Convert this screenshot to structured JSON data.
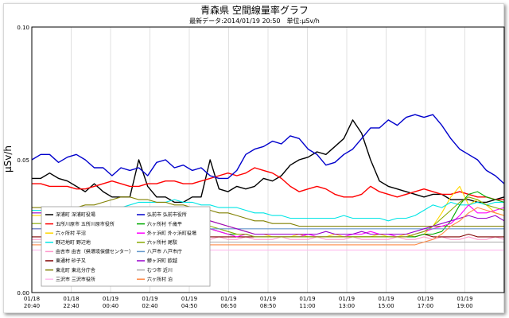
{
  "chart_data": {
    "type": "line",
    "title": "青森県 空間線量率グラフ",
    "subtitle": "最新データ:2014/01/19 20:50　単位:μSv/h",
    "ylabel": "μSv/h",
    "xlabel": "",
    "ylim": [
      0,
      0.1
    ],
    "y_ticks": [
      "0.00",
      "0.05",
      "0.10"
    ],
    "x_ticks": [
      {
        "date": "01/18",
        "time": "20:40"
      },
      {
        "date": "01/18",
        "time": "22:40"
      },
      {
        "date": "01/19",
        "time": "00:40"
      },
      {
        "date": "01/19",
        "time": "02:40"
      },
      {
        "date": "01/19",
        "time": "04:50"
      },
      {
        "date": "01/19",
        "time": "06:50"
      },
      {
        "date": "01/19",
        "time": "08:50"
      },
      {
        "date": "01/19",
        "time": "11:00"
      },
      {
        "date": "01/19",
        "time": "13:00"
      },
      {
        "date": "01/19",
        "time": "15:00"
      },
      {
        "date": "01/19",
        "time": "17:00"
      },
      {
        "date": "01/19",
        "time": "19:00"
      }
    ],
    "grid": "vertical",
    "series": [
      {
        "name": "深浦町 深浦町役場",
        "color": "#000000",
        "values": [
          0.043,
          0.043,
          0.045,
          0.043,
          0.042,
          0.04,
          0.038,
          0.041,
          0.038,
          0.036,
          0.036,
          0.036,
          0.05,
          0.04,
          0.036,
          0.036,
          0.034,
          0.034,
          0.036,
          0.036,
          0.05,
          0.039,
          0.038,
          0.04,
          0.039,
          0.04,
          0.043,
          0.042,
          0.044,
          0.048,
          0.05,
          0.051,
          0.053,
          0.052,
          0.055,
          0.058,
          0.065,
          0.06,
          0.05,
          0.042,
          0.04,
          0.039,
          0.038,
          0.037,
          0.036,
          0.037,
          0.037,
          0.035,
          0.035,
          0.035,
          0.034,
          0.034,
          0.035,
          0.036
        ]
      },
      {
        "name": "五所川原市 五所川原市役所",
        "color": "#ff0000",
        "values": [
          0.041,
          0.041,
          0.04,
          0.04,
          0.04,
          0.039,
          0.039,
          0.04,
          0.041,
          0.042,
          0.041,
          0.04,
          0.04,
          0.041,
          0.041,
          0.042,
          0.042,
          0.041,
          0.041,
          0.042,
          0.043,
          0.044,
          0.045,
          0.044,
          0.045,
          0.047,
          0.046,
          0.045,
          0.043,
          0.04,
          0.038,
          0.039,
          0.04,
          0.039,
          0.037,
          0.036,
          0.036,
          0.037,
          0.04,
          0.038,
          0.037,
          0.036,
          0.037,
          0.038,
          0.039,
          0.038,
          0.037,
          0.037,
          0.038,
          0.037,
          0.036,
          0.036,
          0.035,
          0.035
        ]
      },
      {
        "name": "六ヶ所村 平沼",
        "color": "#ffd700",
        "values": [
          0.029,
          0.029,
          0.03,
          0.029,
          0.028,
          0.029,
          0.03,
          0.029,
          0.03,
          0.029,
          0.029,
          0.029,
          0.03,
          0.029,
          0.028,
          0.029,
          0.03,
          0.029,
          0.029,
          0.028,
          0.027,
          0.026,
          0.025,
          0.024,
          0.023,
          0.022,
          0.022,
          0.021,
          0.021,
          0.021,
          0.022,
          0.021,
          0.021,
          0.021,
          0.022,
          0.021,
          0.021,
          0.021,
          0.021,
          0.022,
          0.021,
          0.021,
          0.022,
          0.021,
          0.022,
          0.025,
          0.03,
          0.036,
          0.04,
          0.033,
          0.035,
          0.033,
          0.03,
          0.029
        ]
      },
      {
        "name": "野辺地町 野辺地",
        "color": "#00e5e5",
        "values": [
          0.031,
          0.031,
          0.031,
          0.031,
          0.03,
          0.031,
          0.031,
          0.032,
          0.031,
          0.031,
          0.032,
          0.033,
          0.034,
          0.034,
          0.034,
          0.034,
          0.035,
          0.034,
          0.034,
          0.033,
          0.033,
          0.032,
          0.032,
          0.032,
          0.031,
          0.03,
          0.03,
          0.029,
          0.029,
          0.028,
          0.028,
          0.028,
          0.028,
          0.028,
          0.028,
          0.029,
          0.028,
          0.028,
          0.028,
          0.028,
          0.027,
          0.028,
          0.028,
          0.029,
          0.031,
          0.033,
          0.032,
          0.034,
          0.033,
          0.033,
          0.034,
          0.033,
          0.034,
          0.034
        ]
      },
      {
        "name": "由吉市 由吉（県環境保健センター）",
        "color": "#ff99cc",
        "values": [
          0.02,
          0.02,
          0.021,
          0.02,
          0.02,
          0.021,
          0.02,
          0.02,
          0.021,
          0.02,
          0.02,
          0.021,
          0.022,
          0.021,
          0.02,
          0.021,
          0.02,
          0.02,
          0.021,
          0.021,
          0.02,
          0.021,
          0.02,
          0.02,
          0.021,
          0.02,
          0.02,
          0.02,
          0.021,
          0.02,
          0.02,
          0.02,
          0.021,
          0.02,
          0.02,
          0.02,
          0.021,
          0.02,
          0.02,
          0.02,
          0.02,
          0.021,
          0.02,
          0.02,
          0.021,
          0.02,
          0.021,
          0.02,
          0.02,
          0.021,
          0.02,
          0.02,
          0.021,
          0.02
        ]
      },
      {
        "name": "東通村 砂子又",
        "color": "#800000",
        "values": [
          0.021,
          0.021,
          0.021,
          0.022,
          0.021,
          0.021,
          0.022,
          0.021,
          0.021,
          0.022,
          0.022,
          0.021,
          0.022,
          0.021,
          0.022,
          0.021,
          0.022,
          0.022,
          0.021,
          0.022,
          0.021,
          0.021,
          0.021,
          0.021,
          0.021,
          0.021,
          0.021,
          0.021,
          0.021,
          0.021,
          0.021,
          0.021,
          0.021,
          0.021,
          0.021,
          0.021,
          0.021,
          0.021,
          0.021,
          0.021,
          0.021,
          0.021,
          0.021,
          0.021,
          0.022,
          0.021,
          0.021,
          0.021,
          0.021,
          0.022,
          0.021,
          0.021,
          0.021,
          0.021
        ]
      },
      {
        "name": "東北町 東北分庁舎",
        "color": "#808000",
        "values": [
          0.032,
          0.032,
          0.032,
          0.031,
          0.032,
          0.032,
          0.033,
          0.033,
          0.034,
          0.035,
          0.036,
          0.036,
          0.035,
          0.035,
          0.034,
          0.034,
          0.033,
          0.033,
          0.032,
          0.032,
          0.031,
          0.03,
          0.03,
          0.029,
          0.028,
          0.027,
          0.027,
          0.026,
          0.026,
          0.026,
          0.025,
          0.025,
          0.025,
          0.025,
          0.025,
          0.025,
          0.025,
          0.025,
          0.025,
          0.025,
          0.025,
          0.025,
          0.025,
          0.025,
          0.025,
          0.025,
          0.025,
          0.025,
          0.025,
          0.025,
          0.025,
          0.025,
          0.025,
          0.025
        ]
      },
      {
        "name": "三沢市 三沢市役所",
        "color": "#ffbbee",
        "values": [
          0.016,
          0.016,
          0.016,
          0.016,
          0.016,
          0.016,
          0.016,
          0.016,
          0.016,
          0.016,
          0.016,
          0.016,
          0.016,
          0.016,
          0.016,
          0.016,
          0.016,
          0.016,
          0.016,
          0.016,
          0.016,
          0.016,
          0.016,
          0.016,
          0.016,
          0.016,
          0.016,
          0.016,
          0.016,
          0.016,
          0.016,
          0.016,
          0.016,
          0.016,
          0.016,
          0.016,
          0.016,
          0.016,
          0.016,
          0.016,
          0.016,
          0.016,
          0.016,
          0.016,
          0.016,
          0.016,
          0.016,
          0.016,
          0.016,
          0.016,
          0.016,
          0.016,
          0.016,
          0.016
        ]
      },
      {
        "name": "弘前市 弘前市役所",
        "color": "#0000cc",
        "values": [
          0.05,
          0.052,
          0.052,
          0.049,
          0.051,
          0.052,
          0.05,
          0.047,
          0.047,
          0.044,
          0.047,
          0.046,
          0.047,
          0.044,
          0.049,
          0.05,
          0.047,
          0.048,
          0.046,
          0.047,
          0.044,
          0.043,
          0.043,
          0.046,
          0.052,
          0.054,
          0.055,
          0.057,
          0.056,
          0.059,
          0.058,
          0.054,
          0.052,
          0.048,
          0.049,
          0.052,
          0.054,
          0.058,
          0.062,
          0.062,
          0.065,
          0.063,
          0.066,
          0.067,
          0.066,
          0.067,
          0.063,
          0.058,
          0.054,
          0.052,
          0.05,
          0.046,
          0.044,
          0.041
        ]
      },
      {
        "name": "六ヶ所村 千歳平",
        "color": "#00aa00",
        "values": [
          0.024,
          0.024,
          0.025,
          0.024,
          0.024,
          0.025,
          0.025,
          0.026,
          0.025,
          0.025,
          0.026,
          0.025,
          0.026,
          0.026,
          0.027,
          0.027,
          0.026,
          0.026,
          0.025,
          0.025,
          0.024,
          0.023,
          0.022,
          0.022,
          0.022,
          0.021,
          0.021,
          0.021,
          0.021,
          0.021,
          0.021,
          0.021,
          0.021,
          0.021,
          0.021,
          0.021,
          0.021,
          0.021,
          0.021,
          0.021,
          0.021,
          0.021,
          0.021,
          0.021,
          0.022,
          0.022,
          0.023,
          0.027,
          0.033,
          0.037,
          0.038,
          0.036,
          0.035,
          0.034
        ]
      },
      {
        "name": "外ヶ浜町 外ヶ浜町役場",
        "color": "#ff00ff",
        "values": [
          0.024,
          0.024,
          0.025,
          0.024,
          0.025,
          0.024,
          0.024,
          0.025,
          0.024,
          0.024,
          0.025,
          0.025,
          0.025,
          0.025,
          0.025,
          0.024,
          0.024,
          0.024,
          0.024,
          0.025,
          0.024,
          0.023,
          0.022,
          0.021,
          0.022,
          0.021,
          0.021,
          0.021,
          0.021,
          0.021,
          0.021,
          0.022,
          0.021,
          0.021,
          0.021,
          0.021,
          0.022,
          0.022,
          0.023,
          0.022,
          0.022,
          0.021,
          0.021,
          0.022,
          0.023,
          0.024,
          0.025,
          0.026,
          0.029,
          0.033,
          0.03,
          0.03,
          0.031,
          0.032
        ]
      },
      {
        "name": "六ヶ所村 尾駮",
        "color": "#88aa00",
        "values": [
          0.026,
          0.026,
          0.027,
          0.026,
          0.026,
          0.027,
          0.026,
          0.027,
          0.026,
          0.026,
          0.027,
          0.027,
          0.027,
          0.026,
          0.027,
          0.027,
          0.026,
          0.027,
          0.026,
          0.026,
          0.025,
          0.024,
          0.023,
          0.022,
          0.022,
          0.021,
          0.021,
          0.021,
          0.021,
          0.021,
          0.021,
          0.021,
          0.021,
          0.021,
          0.021,
          0.021,
          0.021,
          0.021,
          0.021,
          0.021,
          0.021,
          0.021,
          0.021,
          0.022,
          0.023,
          0.025,
          0.028,
          0.031,
          0.034,
          0.036,
          0.035,
          0.033,
          0.032,
          0.031
        ]
      },
      {
        "name": "八戸市 八戸市庁",
        "color": "#6699cc",
        "values": [
          0.024,
          0.024,
          0.024,
          0.024,
          0.024,
          0.024,
          0.024,
          0.024,
          0.024,
          0.024,
          0.024,
          0.024,
          0.024,
          0.024,
          0.024,
          0.024,
          0.024,
          0.024,
          0.024,
          0.024,
          0.024,
          0.024,
          0.024,
          0.024,
          0.024,
          0.024,
          0.024,
          0.024,
          0.024,
          0.024,
          0.024,
          0.024,
          0.024,
          0.024,
          0.024,
          0.024,
          0.024,
          0.024,
          0.024,
          0.024,
          0.024,
          0.024,
          0.024,
          0.024,
          0.024,
          0.024,
          0.024,
          0.024,
          0.024,
          0.024,
          0.024,
          0.024,
          0.024,
          0.024
        ]
      },
      {
        "name": "鯵ヶ沢町 欧越",
        "color": "#9900cc",
        "values": [
          0.03,
          0.03,
          0.031,
          0.03,
          0.03,
          0.031,
          0.031,
          0.03,
          0.03,
          0.031,
          0.03,
          0.03,
          0.031,
          0.03,
          0.03,
          0.03,
          0.031,
          0.03,
          0.029,
          0.028,
          0.027,
          0.026,
          0.025,
          0.024,
          0.023,
          0.022,
          0.022,
          0.022,
          0.022,
          0.022,
          0.022,
          0.022,
          0.022,
          0.023,
          0.022,
          0.022,
          0.022,
          0.023,
          0.022,
          0.022,
          0.022,
          0.022,
          0.022,
          0.023,
          0.024,
          0.025,
          0.026,
          0.027,
          0.028,
          0.029,
          0.028,
          0.028,
          0.029,
          0.027
        ]
      },
      {
        "name": "むつ市 近川",
        "color": "#aaaaaa",
        "values": [
          0.019,
          0.019,
          0.019,
          0.019,
          0.019,
          0.019,
          0.019,
          0.019,
          0.019,
          0.019,
          0.019,
          0.019,
          0.019,
          0.019,
          0.019,
          0.019,
          0.019,
          0.019,
          0.019,
          0.019,
          0.019,
          0.019,
          0.019,
          0.019,
          0.019,
          0.019,
          0.019,
          0.019,
          0.019,
          0.019,
          0.019,
          0.019,
          0.019,
          0.019,
          0.019,
          0.019,
          0.019,
          0.019,
          0.019,
          0.019,
          0.019,
          0.019,
          0.019,
          0.019,
          0.019,
          0.019,
          0.019,
          0.019,
          0.019,
          0.019,
          0.019,
          0.019,
          0.019,
          0.019
        ]
      },
      {
        "name": "六ヶ所村 泊",
        "color": "#ff8844",
        "values": [
          0.018,
          0.018,
          0.018,
          0.018,
          0.018,
          0.018,
          0.018,
          0.018,
          0.018,
          0.018,
          0.018,
          0.018,
          0.018,
          0.018,
          0.018,
          0.018,
          0.018,
          0.018,
          0.018,
          0.018,
          0.018,
          0.018,
          0.018,
          0.018,
          0.018,
          0.018,
          0.018,
          0.018,
          0.018,
          0.018,
          0.018,
          0.018,
          0.018,
          0.018,
          0.018,
          0.018,
          0.018,
          0.018,
          0.018,
          0.018,
          0.018,
          0.018,
          0.018,
          0.018,
          0.019,
          0.02,
          0.022,
          0.025,
          0.027,
          0.03,
          0.032,
          0.031,
          0.03,
          0.029
        ]
      }
    ]
  }
}
